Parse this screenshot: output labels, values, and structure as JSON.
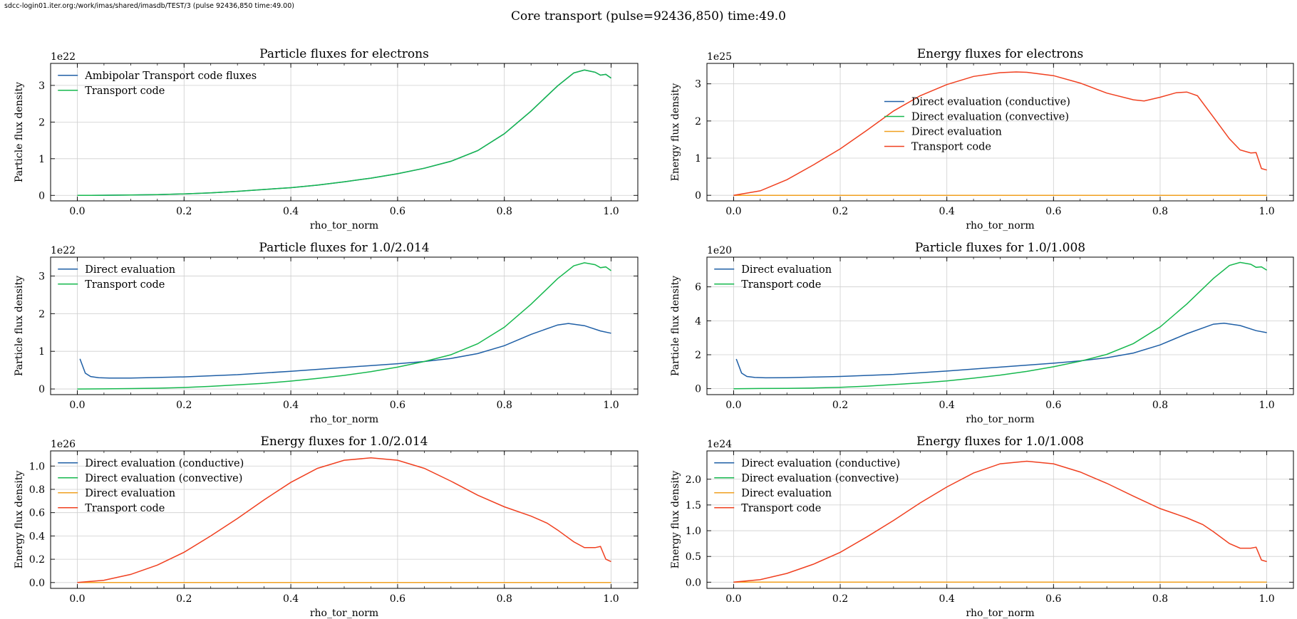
{
  "window": {
    "path_label": "sdcc-login01.iter.org:/work/imas/shared/imasdb/TEST/3 (pulse 92436,850 time:49.00)",
    "suptitle": "Core transport (pulse=92436,850) time:49.0"
  },
  "colors": {
    "blue": "#1f5fa6",
    "green": "#16b84e",
    "orange": "#f0a020",
    "red": "#f04020",
    "grid": "#cfcfcf"
  },
  "chart_data": [
    {
      "type": "line",
      "title": "Particle fluxes for electrons",
      "xlabel": "rho_tor_norm",
      "ylabel": "Particle flux density",
      "exponent": "1e22",
      "xlim": [
        -0.05,
        1.05
      ],
      "ylim": [
        -0.15,
        3.6
      ],
      "xticks": [
        "0.0",
        "0.2",
        "0.4",
        "0.6",
        "0.8",
        "1.0"
      ],
      "yticks": [
        "0",
        "1",
        "2",
        "3"
      ],
      "grid": true,
      "legend_position": "upper-left",
      "series": [
        {
          "name": "Ambipolar Transport code fluxes",
          "color": "#1f5fa6",
          "x": [
            0,
            0.05,
            0.1,
            0.15,
            0.2,
            0.25,
            0.3,
            0.35,
            0.4,
            0.45,
            0.5,
            0.55,
            0.6,
            0.65,
            0.7,
            0.75,
            0.8,
            0.85,
            0.9,
            0.93,
            0.95,
            0.97,
            0.98,
            0.99,
            1.0
          ],
          "y": [
            0,
            0.004,
            0.01,
            0.02,
            0.04,
            0.07,
            0.11,
            0.16,
            0.21,
            0.28,
            0.37,
            0.47,
            0.59,
            0.74,
            0.93,
            1.22,
            1.68,
            2.3,
            2.99,
            3.34,
            3.42,
            3.36,
            3.28,
            3.3,
            3.2
          ]
        },
        {
          "name": "Transport code",
          "color": "#16b84e",
          "x": [
            0,
            0.05,
            0.1,
            0.15,
            0.2,
            0.25,
            0.3,
            0.35,
            0.4,
            0.45,
            0.5,
            0.55,
            0.6,
            0.65,
            0.7,
            0.75,
            0.8,
            0.85,
            0.9,
            0.93,
            0.95,
            0.97,
            0.98,
            0.99,
            1.0
          ],
          "y": [
            0,
            0.004,
            0.01,
            0.02,
            0.04,
            0.07,
            0.11,
            0.16,
            0.21,
            0.28,
            0.37,
            0.47,
            0.59,
            0.74,
            0.93,
            1.22,
            1.68,
            2.3,
            2.99,
            3.34,
            3.42,
            3.36,
            3.28,
            3.3,
            3.2
          ]
        }
      ]
    },
    {
      "type": "line",
      "title": "Energy fluxes for electrons",
      "xlabel": "rho_tor_norm",
      "ylabel": "Energy flux density",
      "exponent": "1e25",
      "xlim": [
        -0.05,
        1.05
      ],
      "ylim": [
        -0.15,
        3.55
      ],
      "xticks": [
        "0.0",
        "0.2",
        "0.4",
        "0.6",
        "0.8",
        "1.0"
      ],
      "yticks": [
        "0",
        "1",
        "2",
        "3"
      ],
      "grid": true,
      "legend_position": "center",
      "series": [
        {
          "name": "Direct evaluation (conductive)",
          "color": "#1f5fa6",
          "x": [
            0,
            1.0
          ],
          "y": [
            0,
            0
          ]
        },
        {
          "name": "Direct evaluation (convective)",
          "color": "#16b84e",
          "x": [
            0,
            1.0
          ],
          "y": [
            0,
            0
          ]
        },
        {
          "name": "Direct evaluation",
          "color": "#f0a020",
          "x": [
            0,
            1.0
          ],
          "y": [
            0,
            0
          ]
        },
        {
          "name": "Transport code",
          "color": "#f04020",
          "x": [
            0,
            0.05,
            0.1,
            0.15,
            0.2,
            0.25,
            0.3,
            0.35,
            0.4,
            0.45,
            0.5,
            0.53,
            0.55,
            0.6,
            0.65,
            0.7,
            0.75,
            0.77,
            0.8,
            0.83,
            0.85,
            0.87,
            0.9,
            0.93,
            0.95,
            0.97,
            0.98,
            0.99,
            1.0
          ],
          "y": [
            0,
            0.12,
            0.42,
            0.82,
            1.25,
            1.75,
            2.27,
            2.68,
            2.98,
            3.2,
            3.3,
            3.32,
            3.31,
            3.22,
            3.02,
            2.75,
            2.57,
            2.54,
            2.64,
            2.76,
            2.78,
            2.68,
            2.1,
            1.52,
            1.22,
            1.14,
            1.15,
            0.72,
            0.68
          ]
        }
      ]
    },
    {
      "type": "line",
      "title": "Particle fluxes for 1.0/2.014",
      "xlabel": "rho_tor_norm",
      "ylabel": "Particle flux density",
      "exponent": "1e22",
      "xlim": [
        -0.05,
        1.05
      ],
      "ylim": [
        -0.15,
        3.5
      ],
      "xticks": [
        "0.0",
        "0.2",
        "0.4",
        "0.6",
        "0.8",
        "1.0"
      ],
      "yticks": [
        "0",
        "1",
        "2",
        "3"
      ],
      "grid": true,
      "legend_position": "upper-left",
      "series": [
        {
          "name": "Direct evaluation",
          "color": "#1f5fa6",
          "x": [
            0.005,
            0.015,
            0.025,
            0.04,
            0.06,
            0.1,
            0.2,
            0.3,
            0.4,
            0.5,
            0.6,
            0.65,
            0.7,
            0.75,
            0.8,
            0.85,
            0.9,
            0.92,
            0.95,
            0.98,
            1.0
          ],
          "y": [
            0.8,
            0.42,
            0.33,
            0.3,
            0.29,
            0.29,
            0.32,
            0.38,
            0.47,
            0.57,
            0.67,
            0.73,
            0.81,
            0.94,
            1.15,
            1.45,
            1.7,
            1.74,
            1.68,
            1.54,
            1.48
          ]
        },
        {
          "name": "Transport code",
          "color": "#16b84e",
          "x": [
            0,
            0.05,
            0.1,
            0.15,
            0.2,
            0.25,
            0.3,
            0.35,
            0.4,
            0.45,
            0.5,
            0.55,
            0.6,
            0.65,
            0.7,
            0.75,
            0.8,
            0.85,
            0.9,
            0.93,
            0.95,
            0.97,
            0.98,
            0.99,
            1.0
          ],
          "y": [
            0,
            0.004,
            0.01,
            0.02,
            0.04,
            0.07,
            0.11,
            0.15,
            0.21,
            0.28,
            0.36,
            0.46,
            0.58,
            0.73,
            0.91,
            1.2,
            1.64,
            2.25,
            2.93,
            3.27,
            3.35,
            3.3,
            3.22,
            3.24,
            3.14
          ]
        }
      ]
    },
    {
      "type": "line",
      "title": "Particle fluxes for 1.0/1.008",
      "xlabel": "rho_tor_norm",
      "ylabel": "Particle flux density",
      "exponent": "1e20",
      "xlim": [
        -0.05,
        1.05
      ],
      "ylim": [
        -0.35,
        7.75
      ],
      "xticks": [
        "0.0",
        "0.2",
        "0.4",
        "0.6",
        "0.8",
        "1.0"
      ],
      "yticks": [
        "0",
        "2",
        "4",
        "6"
      ],
      "grid": true,
      "legend_position": "upper-left",
      "series": [
        {
          "name": "Direct evaluation",
          "color": "#1f5fa6",
          "x": [
            0.005,
            0.015,
            0.025,
            0.04,
            0.06,
            0.1,
            0.2,
            0.3,
            0.4,
            0.5,
            0.6,
            0.65,
            0.7,
            0.75,
            0.8,
            0.85,
            0.9,
            0.92,
            0.95,
            0.98,
            1.0
          ],
          "y": [
            1.75,
            0.92,
            0.72,
            0.66,
            0.64,
            0.65,
            0.72,
            0.84,
            1.04,
            1.27,
            1.5,
            1.64,
            1.82,
            2.1,
            2.58,
            3.24,
            3.8,
            3.86,
            3.72,
            3.42,
            3.3
          ]
        },
        {
          "name": "Transport code",
          "color": "#16b84e",
          "x": [
            0,
            0.05,
            0.1,
            0.15,
            0.2,
            0.25,
            0.3,
            0.35,
            0.4,
            0.45,
            0.5,
            0.55,
            0.6,
            0.65,
            0.7,
            0.75,
            0.8,
            0.85,
            0.9,
            0.93,
            0.95,
            0.97,
            0.98,
            0.99,
            1.0
          ],
          "y": [
            0,
            0.01,
            0.02,
            0.04,
            0.08,
            0.15,
            0.24,
            0.34,
            0.46,
            0.62,
            0.8,
            1.02,
            1.29,
            1.62,
            2.02,
            2.66,
            3.64,
            4.99,
            6.5,
            7.26,
            7.44,
            7.33,
            7.15,
            7.18,
            6.98
          ]
        }
      ]
    },
    {
      "type": "line",
      "title": "Energy fluxes for 1.0/2.014",
      "xlabel": "rho_tor_norm",
      "ylabel": "Energy flux density",
      "exponent": "1e26",
      "xlim": [
        -0.05,
        1.05
      ],
      "ylim": [
        -0.05,
        1.13
      ],
      "xticks": [
        "0.0",
        "0.2",
        "0.4",
        "0.6",
        "0.8",
        "1.0"
      ],
      "yticks": [
        "0.0",
        "0.2",
        "0.4",
        "0.6",
        "0.8",
        "1.0"
      ],
      "grid": true,
      "legend_position": "upper-left",
      "series": [
        {
          "name": "Direct evaluation (conductive)",
          "color": "#1f5fa6",
          "x": [
            0,
            1.0
          ],
          "y": [
            0,
            0
          ]
        },
        {
          "name": "Direct evaluation (convective)",
          "color": "#16b84e",
          "x": [
            0,
            1.0
          ],
          "y": [
            0,
            0
          ]
        },
        {
          "name": "Direct evaluation",
          "color": "#f0a020",
          "x": [
            0,
            1.0
          ],
          "y": [
            0,
            0
          ]
        },
        {
          "name": "Transport code",
          "color": "#f04020",
          "x": [
            0,
            0.05,
            0.1,
            0.15,
            0.2,
            0.25,
            0.3,
            0.35,
            0.4,
            0.45,
            0.5,
            0.55,
            0.6,
            0.65,
            0.7,
            0.75,
            0.8,
            0.85,
            0.88,
            0.9,
            0.93,
            0.95,
            0.97,
            0.98,
            0.99,
            1.0
          ],
          "y": [
            0,
            0.02,
            0.07,
            0.15,
            0.26,
            0.4,
            0.55,
            0.71,
            0.86,
            0.98,
            1.05,
            1.07,
            1.05,
            0.98,
            0.87,
            0.75,
            0.65,
            0.57,
            0.51,
            0.45,
            0.35,
            0.3,
            0.3,
            0.31,
            0.2,
            0.18
          ]
        }
      ]
    },
    {
      "type": "line",
      "title": "Energy fluxes for 1.0/1.008",
      "xlabel": "rho_tor_norm",
      "ylabel": "Energy flux density",
      "exponent": "1e24",
      "xlim": [
        -0.05,
        1.05
      ],
      "ylim": [
        -0.12,
        2.55
      ],
      "xticks": [
        "0.0",
        "0.2",
        "0.4",
        "0.6",
        "0.8",
        "1.0"
      ],
      "yticks": [
        "0.0",
        "0.5",
        "1.0",
        "1.5",
        "2.0"
      ],
      "grid": true,
      "legend_position": "upper-left",
      "series": [
        {
          "name": "Direct evaluation (conductive)",
          "color": "#1f5fa6",
          "x": [
            0,
            1.0
          ],
          "y": [
            0,
            0
          ]
        },
        {
          "name": "Direct evaluation (convective)",
          "color": "#16b84e",
          "x": [
            0,
            1.0
          ],
          "y": [
            0,
            0
          ]
        },
        {
          "name": "Direct evaluation",
          "color": "#f0a020",
          "x": [
            0,
            1.0
          ],
          "y": [
            0,
            0
          ]
        },
        {
          "name": "Transport code",
          "color": "#f04020",
          "x": [
            0,
            0.05,
            0.1,
            0.15,
            0.2,
            0.25,
            0.3,
            0.35,
            0.4,
            0.45,
            0.5,
            0.55,
            0.6,
            0.65,
            0.7,
            0.75,
            0.8,
            0.85,
            0.88,
            0.9,
            0.93,
            0.95,
            0.97,
            0.98,
            0.99,
            1.0
          ],
          "y": [
            0,
            0.05,
            0.17,
            0.35,
            0.58,
            0.88,
            1.2,
            1.54,
            1.85,
            2.12,
            2.3,
            2.35,
            2.3,
            2.14,
            1.92,
            1.67,
            1.43,
            1.25,
            1.12,
            0.98,
            0.75,
            0.66,
            0.66,
            0.68,
            0.43,
            0.4
          ]
        }
      ]
    }
  ]
}
